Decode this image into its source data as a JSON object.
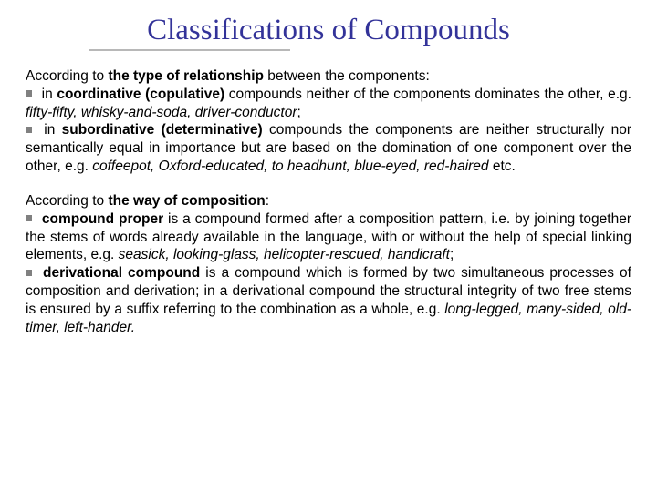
{
  "title": "Classifications of Compounds",
  "section1": {
    "intro_prefix": "According to ",
    "intro_bold": "the type of relationship",
    "intro_suffix": " between the components:",
    "bullet1_prefix": " in ",
    "bullet1_bold": "coordinative (copulative)",
    "bullet1_mid": " compounds neither of the components dominates the other, e.g. ",
    "bullet1_italic": "fifty-fifty, whisky-and-soda, driver-conductor",
    "bullet1_suffix": ";",
    "bullet2_prefix": " in ",
    "bullet2_bold": "subordinative (determinative)",
    "bullet2_mid": " compounds the components are neither structurally nor semantically equal in importance but are based on the domination of one component over the other, e.g. ",
    "bullet2_italic": "coffeepot, Oxford-educated, to headhunt, blue-eyed, red-haired",
    "bullet2_suffix": " etc."
  },
  "section2": {
    "intro_prefix": "According to ",
    "intro_bold": "the way of composition",
    "intro_suffix": ":",
    "bullet1_bold": " compound proper",
    "bullet1_mid": " is a compound formed after a composition pattern, i.e. by joining together the stems of words already available in the language, with or without the help of special linking elements, e.g. ",
    "bullet1_italic": "seasick, looking-glass, helicopter-rescued, handicraft",
    "bullet1_suffix": ";",
    "bullet2_bold": " derivational compound",
    "bullet2_mid": " is a compound which is formed by two simultaneous processes of composition and derivation; in a derivational compound the structural integrity of two free stems is ensured by a suffix referring to the combination as a whole, e.g. ",
    "bullet2_italic": "long-legged, many-sided, old-timer, left-hander.",
    "bullet2_suffix": ""
  },
  "colors": {
    "title_color": "#333399",
    "text_color": "#000000",
    "bullet_color": "#808080",
    "line_color": "#b8b8b8",
    "background": "#ffffff"
  },
  "typography": {
    "title_fontsize": 33,
    "body_fontsize": 15.5,
    "title_font": "Times New Roman",
    "body_font": "Arial"
  }
}
